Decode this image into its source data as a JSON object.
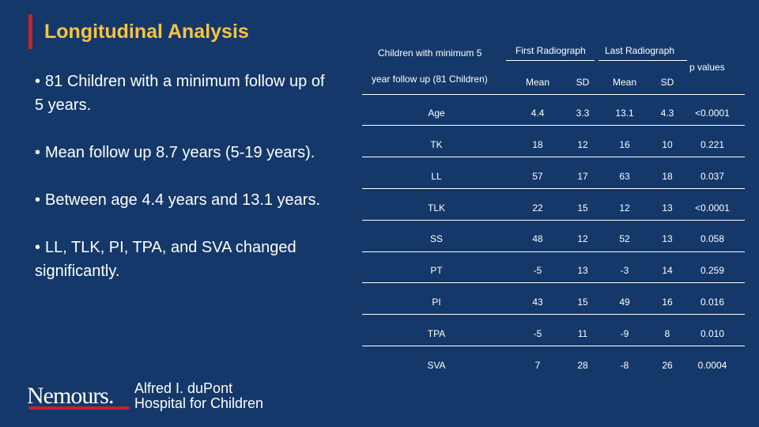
{
  "slide": {
    "title": "Longitudinal Analysis",
    "bullets": [
      "81 Children with a minimum follow up of 5 years.",
      "Mean follow up 8.7 years (5-19 years).",
      "Between age 4.4 years and 13.1 years.",
      "LL, TLK, PI, TPA, and SVA changed significantly."
    ],
    "bullet_symbol": "•"
  },
  "table": {
    "header_line1": "Children with minimum 5",
    "header_line2": "year follow up (81 Children)",
    "group_first": "First Radiograph",
    "group_last": "Last Radiograph",
    "p_values_label": "p values",
    "sub_headers": [
      "Mean",
      "SD",
      "Mean",
      "SD"
    ],
    "rows": [
      [
        "Age",
        "4.4",
        "3.3",
        "13.1",
        "4.3",
        "<0.0001"
      ],
      [
        "TK",
        "18",
        "12",
        "16",
        "10",
        "0.221"
      ],
      [
        "LL",
        "57",
        "17",
        "63",
        "18",
        "0.037"
      ],
      [
        "TLK",
        "22",
        "15",
        "12",
        "13",
        "<0.0001"
      ],
      [
        "SS",
        "48",
        "12",
        "52",
        "13",
        "0.058"
      ],
      [
        "PT",
        "-5",
        "13",
        "-3",
        "14",
        "0.259"
      ],
      [
        "PI",
        "43",
        "15",
        "49",
        "16",
        "0.016"
      ],
      [
        "TPA",
        "-5",
        "11",
        "-9",
        "8",
        "0.010"
      ],
      [
        "SVA",
        "7",
        "28",
        "-8",
        "26",
        "0.0004"
      ]
    ]
  },
  "logo": {
    "brand": "Nemours.",
    "line1": "Alfred I. duPont",
    "line2": "Hospital for Children"
  },
  "colors": {
    "background": "#15386a",
    "title": "#f6c343",
    "accent_bar": "#c0232e"
  }
}
